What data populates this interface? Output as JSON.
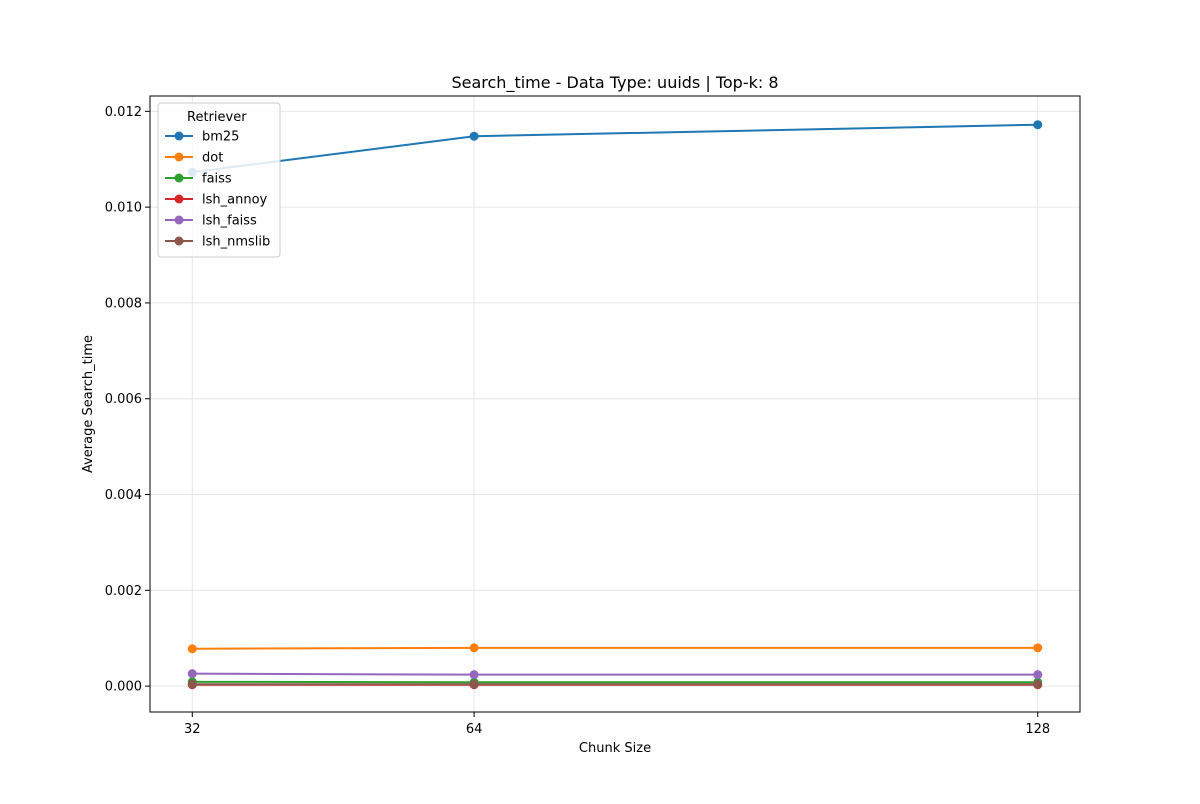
{
  "chart_data": {
    "type": "line",
    "title": "Search_time - Data Type: uuids | Top-k: 8",
    "xlabel": "Chunk Size",
    "ylabel": "Average Search_time",
    "x": [
      32,
      64,
      128
    ],
    "x_tick_labels": [
      "32",
      "64",
      "128"
    ],
    "xlim": [
      27.2,
      132.8
    ],
    "ylim": [
      -0.00054,
      0.01232
    ],
    "y_ticks": [
      0.0,
      0.002,
      0.004,
      0.006,
      0.008,
      0.01,
      0.012
    ],
    "y_tick_labels": [
      "0.000",
      "0.002",
      "0.004",
      "0.006",
      "0.008",
      "0.010",
      "0.012"
    ],
    "grid": true,
    "legend": {
      "title": "Retriever",
      "placement": "top-left"
    },
    "series": [
      {
        "name": "bm25",
        "color": "#1f77b4",
        "values": [
          0.01073,
          0.01148,
          0.01172
        ]
      },
      {
        "name": "dot",
        "color": "#ff7f0e",
        "values": [
          0.00078,
          0.0008,
          0.0008
        ]
      },
      {
        "name": "faiss",
        "color": "#2ca02c",
        "values": [
          9e-05,
          8e-05,
          8e-05
        ]
      },
      {
        "name": "lsh_annoy",
        "color": "#d62728",
        "values": [
          3e-05,
          3e-05,
          3e-05
        ]
      },
      {
        "name": "lsh_faiss",
        "color": "#9467bd",
        "values": [
          0.00026,
          0.00024,
          0.00024
        ]
      },
      {
        "name": "lsh_nmslib",
        "color": "#8c564b",
        "values": [
          4e-05,
          4e-05,
          4e-05
        ]
      }
    ]
  }
}
